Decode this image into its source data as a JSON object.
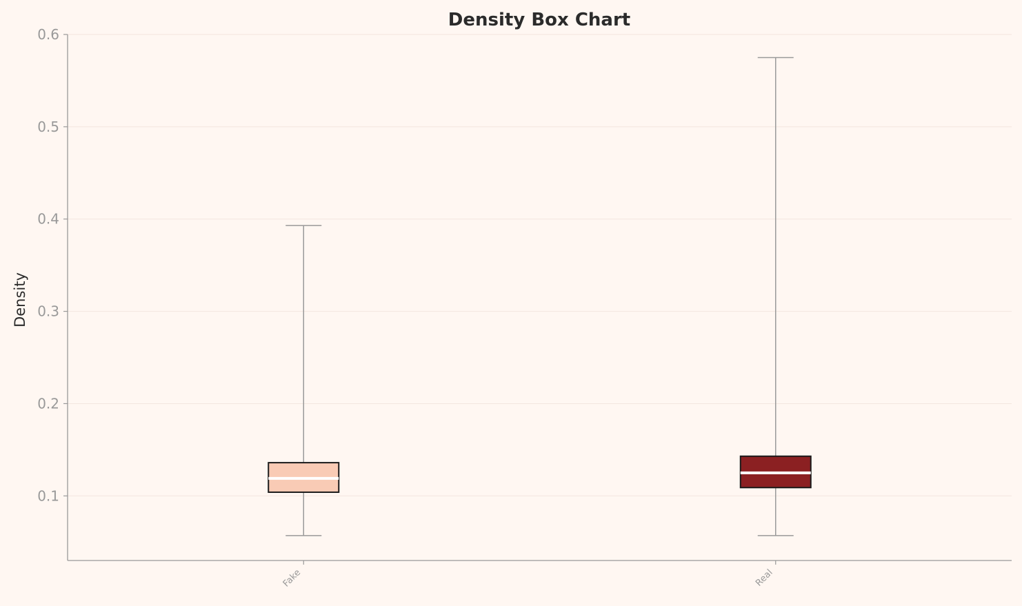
{
  "chart_data": {
    "type": "box",
    "title": "Density Box Chart",
    "xlabel": "",
    "ylabel": "Density",
    "ylim": [
      0.03,
      0.6
    ],
    "yticks": [
      "0.1",
      "0.2",
      "0.3",
      "0.4",
      "0.5",
      "0.6"
    ],
    "grid": true,
    "categories": [
      "Fake",
      "Real"
    ],
    "boxes": [
      {
        "category": "Fake",
        "whisker_low": 0.057,
        "q1": 0.104,
        "median": 0.119,
        "q3": 0.136,
        "whisker_high": 0.393,
        "color": "#f9cbb5"
      },
      {
        "category": "Real",
        "whisker_low": 0.057,
        "q1": 0.109,
        "median": 0.125,
        "q3": 0.143,
        "whisker_high": 0.575,
        "color": "#8b2022"
      }
    ]
  }
}
